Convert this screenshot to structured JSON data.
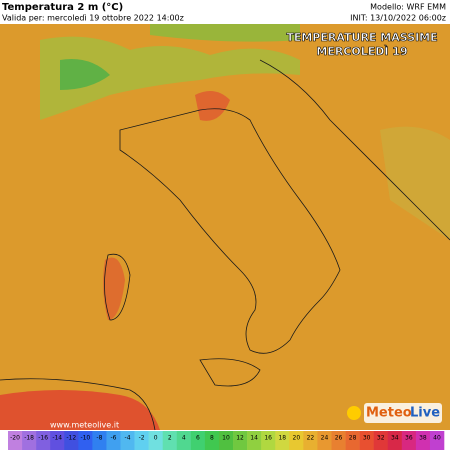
{
  "header": {
    "title": "Temperatura 2 m (°C)",
    "valid": "Valida per: mercoledì 19 ottobre 2022 14:00z",
    "model": "Modello: WRF EMM",
    "init": "INIT: 13/10/2022 06:00z"
  },
  "overlay": {
    "line1": "TEMPERATURE MASSIME",
    "line2": "MERCOLEDÌ 19"
  },
  "logo": {
    "part1": "Meteo",
    "part2": "Live"
  },
  "website": "www.meteolive.it",
  "colorbar": {
    "ticks": [
      -20,
      -18,
      -16,
      -14,
      -12,
      -10,
      -8,
      -6,
      -4,
      -2,
      0,
      2,
      4,
      6,
      8,
      10,
      12,
      14,
      16,
      18,
      20,
      22,
      24,
      26,
      28,
      30,
      32,
      34,
      36,
      38,
      40
    ],
    "colors": [
      "#c080e0",
      "#a070e0",
      "#8060e0",
      "#6050e0",
      "#4050e0",
      "#3060f0",
      "#3080f0",
      "#40a0f0",
      "#50b8f0",
      "#60d0f0",
      "#70e0e0",
      "#60e0b0",
      "#50d890",
      "#40d070",
      "#40c850",
      "#50c040",
      "#70c840",
      "#90d040",
      "#b0d840",
      "#d0d840",
      "#e8c830",
      "#e8b030",
      "#e89830",
      "#e88030",
      "#e86830",
      "#e85030",
      "#e03838",
      "#d82848",
      "#d82880",
      "#d030b0",
      "#c040d0"
    ]
  }
}
